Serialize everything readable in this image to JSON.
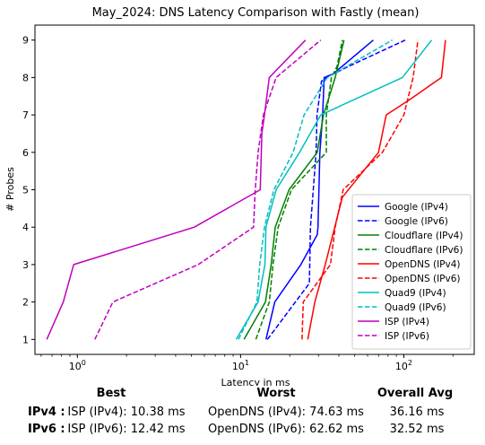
{
  "chart_data": {
    "type": "line",
    "title": "May_2024: DNS Latency Comparison with Fastly (mean)",
    "xlabel": "Latency in ms",
    "ylabel": "# Probes",
    "xscale": "log",
    "xlim": [
      0.55,
      270
    ],
    "ylim": [
      0.6,
      9.4
    ],
    "x_tick_labels": [
      "10^0",
      "10^1",
      "10^2"
    ],
    "y_ticks": [
      1,
      2,
      3,
      4,
      5,
      6,
      7,
      8,
      9
    ],
    "legend_position": "lower right",
    "series": [
      {
        "name": "Google (IPv4)",
        "color": "#0000ff",
        "dash": "solid",
        "x": [
          14.3,
          16.2,
          23.4,
          29.5,
          29.8,
          30.6,
          31.8,
          32.5,
          37.0,
          65.0
        ],
        "y": [
          1,
          2,
          3,
          3.8,
          4,
          6,
          7,
          8,
          8.1,
          9
        ]
      },
      {
        "name": "Google (IPv6)",
        "color": "#0000ff",
        "dash": "dashed",
        "x": [
          14.6,
          26.4,
          26.8,
          29.0,
          29.4,
          31.3,
          33.5,
          46.0,
          102.0
        ],
        "y": [
          1,
          2.5,
          4,
          6,
          7,
          7.9,
          8,
          8.3,
          9
        ]
      },
      {
        "name": "Cloudflare (IPv4)",
        "color": "#008000",
        "dash": "solid",
        "x": [
          10.5,
          14.2,
          15.4,
          16.3,
          19.8,
          29.5,
          32.2,
          38.0,
          43.0
        ],
        "y": [
          1,
          2,
          3,
          4,
          5,
          6,
          7,
          8,
          9
        ]
      },
      {
        "name": "Cloudflare (IPv6)",
        "color": "#008000",
        "dash": "dashed",
        "x": [
          12.4,
          15.0,
          15.8,
          17.0,
          20.5,
          33.5,
          33.5,
          36.0,
          39.0,
          42.0
        ],
        "y": [
          1,
          2,
          3,
          4,
          5,
          6,
          7,
          8,
          8.3,
          9
        ]
      },
      {
        "name": "OpenDNS (IPv4)",
        "color": "#ff0000",
        "dash": "solid",
        "x": [
          25.8,
          28.5,
          33.0,
          42.0,
          70.0,
          78.0,
          108.0,
          170.0,
          180.0
        ],
        "y": [
          1,
          2,
          3,
          4.8,
          6,
          7,
          7.4,
          8,
          9
        ]
      },
      {
        "name": "OpenDNS (IPv6)",
        "color": "#ff0000",
        "dash": "dashed",
        "x": [
          23.8,
          24.2,
          35.5,
          38.0,
          42.5,
          74.0,
          100.0,
          114.0,
          122.0
        ],
        "y": [
          1,
          2,
          3,
          4,
          5,
          6,
          7,
          8,
          9
        ]
      },
      {
        "name": "Quad9 (IPv4)",
        "color": "#00bfbf",
        "dash": "solid",
        "x": [
          9.4,
          12.8,
          14.1,
          14.3,
          16.5,
          23.0,
          31.0,
          98.0,
          148.0
        ],
        "y": [
          1,
          2,
          3,
          4,
          5,
          6,
          7,
          8,
          9
        ]
      },
      {
        "name": "Quad9 (IPv6)",
        "color": "#00bfbf",
        "dash": "dashed",
        "x": [
          9.7,
          12.6,
          13.1,
          14.0,
          16.0,
          21.0,
          24.5,
          34.0,
          85.0
        ],
        "y": [
          1,
          2,
          3,
          4,
          5,
          6,
          7,
          8,
          9
        ]
      },
      {
        "name": "ISP (IPv4)",
        "color": "#bf00bf",
        "dash": "solid",
        "x": [
          0.65,
          0.82,
          0.95,
          5.2,
          13.2,
          13.5,
          14.0,
          15.0,
          25.0
        ],
        "y": [
          1,
          2,
          3,
          4,
          5,
          6.5,
          7,
          8,
          9
        ]
      },
      {
        "name": "ISP (IPv6)",
        "color": "#bf00bf",
        "dash": "dashed",
        "x": [
          1.28,
          1.65,
          5.5,
          12.0,
          12.3,
          12.8,
          13.8,
          16.5,
          31.0
        ],
        "y": [
          1,
          2,
          3,
          4,
          5,
          6,
          7,
          8,
          9
        ]
      }
    ]
  },
  "stats": {
    "headers": {
      "best": "Best",
      "worst": "Worst",
      "avg": "Overall Avg"
    },
    "rows": [
      {
        "label": "IPv4 :",
        "best": "ISP (IPv4): 10.38 ms",
        "worst": "OpenDNS (IPv4): 74.63 ms",
        "avg": "36.16 ms"
      },
      {
        "label": "IPv6 :",
        "best": "ISP (IPv6): 12.42 ms",
        "worst": "OpenDNS (IPv6): 62.62 ms",
        "avg": "32.52 ms"
      }
    ]
  }
}
